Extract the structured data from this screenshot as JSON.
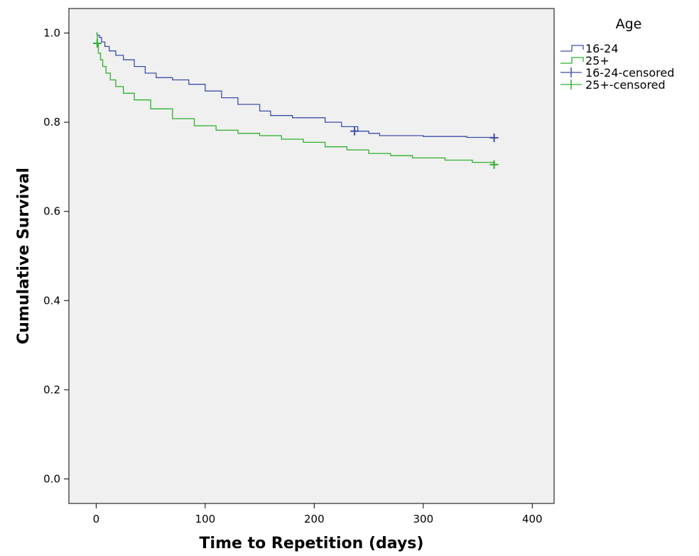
{
  "chart_data": {
    "type": "line",
    "step": true,
    "xlabel": "Time to Repetition (days)",
    "ylabel": "Cumulative Survival",
    "xlim": [
      -25,
      420
    ],
    "ylim": [
      -0.055,
      1.055
    ],
    "xticks": [
      0,
      100,
      200,
      300,
      400
    ],
    "xtick_labels": [
      "0",
      "100",
      "200",
      "300",
      "400"
    ],
    "yticks": [
      0.0,
      0.2,
      0.4,
      0.6,
      0.8,
      1.0
    ],
    "ytick_labels": [
      "0.0",
      "0.2",
      "0.4",
      "0.6",
      "0.8",
      "1.0"
    ],
    "grid": false,
    "background": "#f0f0f0",
    "legend": {
      "title": "Age",
      "position": "outside-right-top",
      "entries": [
        {
          "label": "16-24",
          "kind": "line",
          "color": "#3c4fa8"
        },
        {
          "label": "25+",
          "kind": "line",
          "color": "#2db02d"
        },
        {
          "label": "16-24-censored",
          "kind": "censor",
          "color": "#3c4fa8"
        },
        {
          "label": "25+-censored",
          "kind": "censor",
          "color": "#2db02d"
        }
      ]
    },
    "series": [
      {
        "name": "16-24",
        "color": "#3c4fa8",
        "x": [
          0,
          1,
          3,
          5,
          8,
          12,
          18,
          25,
          35,
          45,
          55,
          70,
          85,
          100,
          115,
          130,
          150,
          160,
          180,
          200,
          210,
          225,
          240,
          250,
          260,
          280,
          300,
          340,
          365
        ],
        "y": [
          1.0,
          0.995,
          0.99,
          0.98,
          0.97,
          0.96,
          0.95,
          0.94,
          0.925,
          0.91,
          0.9,
          0.895,
          0.885,
          0.87,
          0.855,
          0.84,
          0.825,
          0.815,
          0.81,
          0.81,
          0.8,
          0.79,
          0.78,
          0.775,
          0.77,
          0.77,
          0.768,
          0.766,
          0.765
        ]
      },
      {
        "name": "25+",
        "color": "#2db02d",
        "x": [
          0,
          1,
          2,
          4,
          6,
          9,
          13,
          18,
          25,
          35,
          50,
          70,
          90,
          110,
          130,
          150,
          170,
          190,
          210,
          230,
          250,
          270,
          290,
          320,
          345,
          365
        ],
        "y": [
          1.0,
          0.975,
          0.955,
          0.94,
          0.925,
          0.91,
          0.895,
          0.88,
          0.865,
          0.85,
          0.83,
          0.808,
          0.792,
          0.782,
          0.775,
          0.77,
          0.762,
          0.755,
          0.745,
          0.738,
          0.73,
          0.725,
          0.72,
          0.715,
          0.71,
          0.705
        ]
      }
    ],
    "censored": [
      {
        "series": "16-24-censored",
        "color": "#3c4fa8",
        "points": [
          {
            "x": 237,
            "y": 0.78
          },
          {
            "x": 365,
            "y": 0.765
          }
        ]
      },
      {
        "series": "25+-censored",
        "color": "#2db02d",
        "points": [
          {
            "x": 1,
            "y": 0.977
          },
          {
            "x": 365,
            "y": 0.705
          }
        ]
      }
    ]
  }
}
